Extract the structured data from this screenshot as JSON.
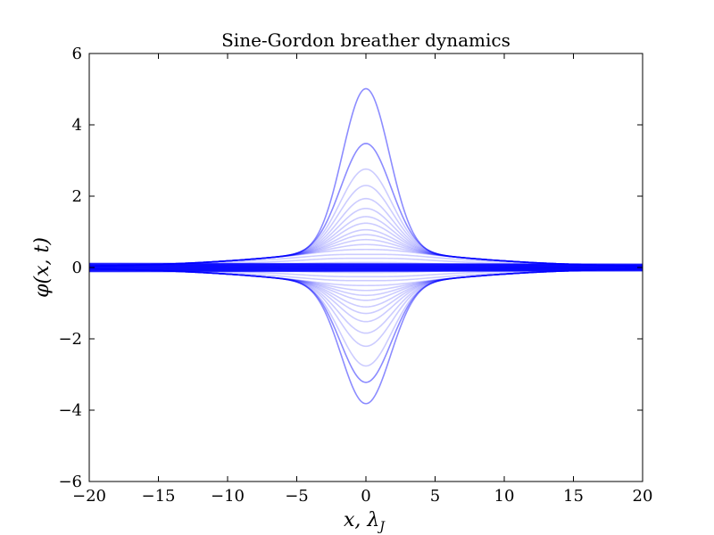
{
  "chart_data": {
    "type": "line",
    "title": "Sine-Gordon breather dynamics",
    "xlabel": "x, λ",
    "xlabel_subscript": "J",
    "ylabel": "φ(x, t)",
    "xlim": [
      -20,
      20
    ],
    "ylim": [
      -6,
      6
    ],
    "xticks": [
      -20,
      -15,
      -10,
      -5,
      0,
      5,
      10,
      15,
      20
    ],
    "xtick_labels": [
      "−20",
      "−15",
      "−10",
      "−5",
      "0",
      "5",
      "10",
      "15",
      "20"
    ],
    "yticks": [
      -6,
      -4,
      -2,
      0,
      2,
      4,
      6
    ],
    "ytick_labels": [
      "−6",
      "−4",
      "−2",
      "0",
      "2",
      "4",
      "6"
    ],
    "grid": false,
    "line_color": "#0000ff",
    "line_opacity": 0.15,
    "series_description": "overlaid breather snapshots φ(x,t) at many times",
    "peak_amplitudes": [
      5.45,
      3.78,
      3.0,
      2.5,
      2.1,
      1.8,
      1.55,
      1.35,
      1.15,
      1.0,
      0.85,
      0.7,
      0.55,
      0.4,
      0.28,
      0.15,
      0.05,
      -0.05,
      -0.15,
      -0.28,
      -0.4,
      -0.55,
      -0.7,
      -0.85,
      -1.0,
      -1.2,
      -1.4,
      -1.65,
      -2.0,
      -2.4,
      -3.0,
      -3.5,
      -4.15
    ]
  }
}
